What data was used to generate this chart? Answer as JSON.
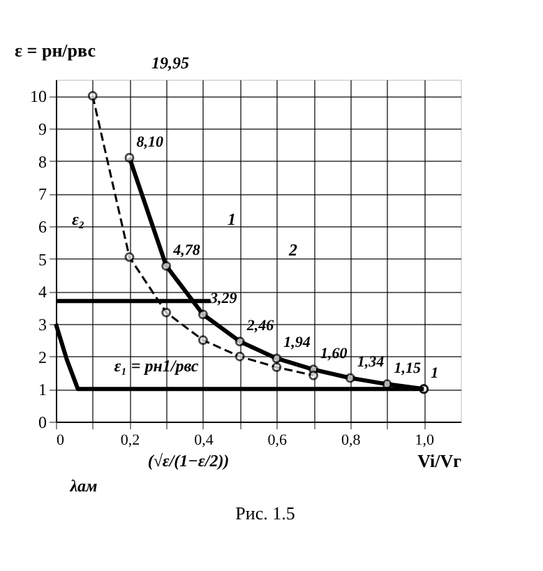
{
  "chart_data": {
    "type": "line",
    "ylabel": "ε = pн/pвс",
    "xlabel": "Vi/Vг",
    "xlim": [
      0,
      1.1
    ],
    "ylim": [
      0,
      10.5
    ],
    "xticks": [
      0,
      {
        "value": 0.1,
        "label": null
      },
      {
        "value": 0.2,
        "label": "0,2"
      },
      {
        "value": 0.3,
        "label": null
      },
      {
        "value": 0.4,
        "label": "0,4"
      },
      {
        "value": 0.5,
        "label": null
      },
      {
        "value": 0.6,
        "label": "0,6"
      },
      {
        "value": 0.7,
        "label": null
      },
      {
        "value": 0.8,
        "label": "0,8"
      },
      {
        "value": 0.9,
        "label": null
      },
      {
        "value": 1.0,
        "label": "1,0"
      }
    ],
    "yticks": [
      0,
      1,
      2,
      3,
      4,
      5,
      6,
      7,
      8,
      9,
      10
    ],
    "grid": true,
    "series": [
      {
        "color": "#000000",
        "marker": "circle",
        "line_style": "solid",
        "x": [
          0.2,
          0.3,
          0.4,
          0.5,
          0.6,
          0.7,
          0.8,
          0.9,
          1.0
        ],
        "values": [
          8.1,
          4.78,
          3.29,
          2.46,
          1.94,
          1.6,
          1.34,
          1.15,
          1
        ],
        "value_labels": [
          "8,10",
          "4,78",
          "3,29",
          "2,46",
          "1,94",
          "1,60",
          "1,34",
          "1,15",
          "1"
        ]
      },
      {
        "color": "#000000",
        "marker": "circle",
        "line_style": "dashed",
        "x": [
          0.1,
          0.2,
          0.3,
          0.4,
          0.5,
          0.6,
          0.7,
          0.8,
          0.9,
          1.0
        ],
        "values": [
          10,
          5.05,
          3.35,
          2.5,
          2.0,
          1.67,
          1.42,
          null,
          null,
          1.0
        ]
      },
      {
        "color": "#000000",
        "marker": "none",
        "line_style": "solid",
        "x": [
          0,
          0.03,
          0.06,
          1.0
        ],
        "values": [
          3.0,
          1.9,
          1.0,
          1.0
        ]
      }
    ],
    "ref_lines": [
      {
        "axis": "y",
        "value": 3.7,
        "color": "#000000"
      }
    ],
    "annotations": [
      "19,95",
      "1",
      "2",
      "ε₁ = pн1/pвс",
      "ε₂",
      "(√ε/(1−ε/2))",
      "λам",
      "Рис. 1.5"
    ]
  }
}
